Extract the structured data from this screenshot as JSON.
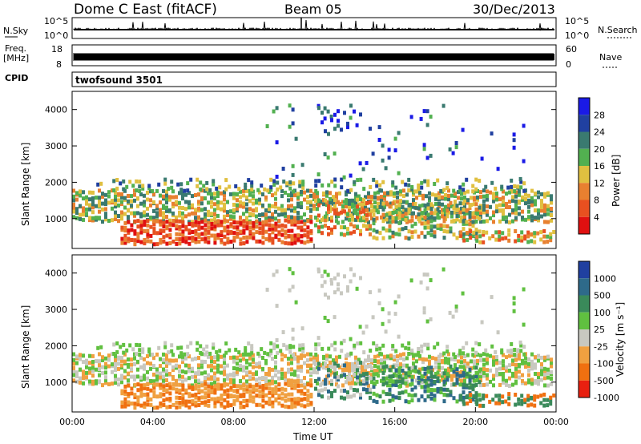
{
  "header": {
    "station": "Dome C East (fitACF)",
    "beam": "Beam 05",
    "date": "30/Dec/2013"
  },
  "housekeeping": {
    "nsky_label": "N.Sky",
    "nsky_ticks": [
      "10^5",
      "10^0"
    ],
    "nsearch_label": "N.Search",
    "nsearch_ticks": [
      "10^5",
      "10^0"
    ],
    "freq_label_line1": "Freq.",
    "freq_label_line2": "[MHz]",
    "freq_ticks": [
      "18",
      "8"
    ],
    "nave_label": "Nave",
    "nave_ticks": [
      "60",
      "0"
    ],
    "cpid_label": "CPID",
    "cpid_value": "twofsound 3501"
  },
  "chart_data": [
    {
      "type": "heatmap",
      "name": "power",
      "ylabel": "Slant Range [km]",
      "yticks": [
        "4000",
        "3000",
        "2000",
        "1000"
      ],
      "ylim": [
        180,
        4500
      ],
      "colorbar_label": "Power [dB]",
      "colorbar_ticks": [
        "28",
        "24",
        "20",
        "16",
        "12",
        "8",
        "4"
      ],
      "colors": [
        "#1a1ae6",
        "#2040a0",
        "#3a7a70",
        "#52b050",
        "#e0c040",
        "#e88030",
        "#e85020",
        "#e01010"
      ]
    },
    {
      "type": "heatmap",
      "name": "velocity",
      "ylabel": "Slant Range [km]",
      "yticks": [
        "4000",
        "3000",
        "2000",
        "1000"
      ],
      "ylim": [
        180,
        4500
      ],
      "xticks": [
        "00:00",
        "04:00",
        "08:00",
        "12:00",
        "16:00",
        "20:00",
        "00:00"
      ],
      "xlabel": "Time UT",
      "colorbar_label": "Velocity [m s⁻¹]",
      "colorbar_ticks": [
        "1000",
        "500",
        "100",
        "25",
        "-25",
        "-100",
        "-500",
        "-1000"
      ],
      "colors": [
        "#2040a0",
        "#2e6a8a",
        "#3a8a5a",
        "#60c040",
        "#c8c8c0",
        "#f0a040",
        "#f07010",
        "#e82010"
      ]
    }
  ]
}
